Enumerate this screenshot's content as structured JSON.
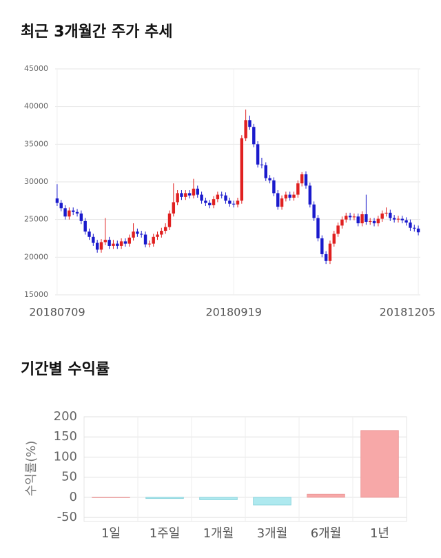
{
  "chart_data": [
    {
      "type": "candlestick",
      "title": "최근 3개월간 주가 추세",
      "categories": [
        "20180709",
        null,
        null,
        null,
        null,
        null,
        null,
        null,
        null,
        null,
        null,
        null,
        null,
        null,
        null,
        null,
        null,
        null,
        null,
        null,
        null,
        null,
        null,
        null,
        null,
        null,
        null,
        null,
        null,
        null,
        null,
        null,
        null,
        null,
        null,
        null,
        null,
        null,
        null,
        null,
        null,
        null,
        null,
        null,
        "20180919",
        null,
        null,
        null,
        null,
        null,
        null,
        null,
        null,
        null,
        null,
        null,
        null,
        null,
        null,
        null,
        null,
        null,
        null,
        null,
        null,
        null,
        null,
        null,
        null,
        null,
        null,
        null,
        null,
        null,
        null,
        null,
        null,
        null,
        null,
        null,
        null,
        null,
        null,
        null,
        null,
        null,
        null,
        null,
        null,
        null,
        "20181205"
      ],
      "open": [
        27800,
        27200,
        26500,
        25400,
        26200,
        26000,
        25800,
        24800,
        23400,
        22700,
        21900,
        21000,
        22000,
        22300,
        21500,
        21800,
        21500,
        22100,
        21800,
        22600,
        23400,
        23100,
        23000,
        21700,
        21800,
        22700,
        23000,
        23500,
        24000,
        25800,
        27300,
        28500,
        28000,
        28500,
        28200,
        29100,
        28300,
        27500,
        27200,
        26900,
        27700,
        28300,
        28200,
        27500,
        27100,
        27000,
        27500,
        35800,
        38200,
        37300,
        35000,
        32300,
        32200,
        30500,
        30200,
        28500,
        26700,
        27800,
        28300,
        27900,
        28300,
        29800,
        31000,
        29500,
        27000,
        25200,
        22500,
        20400,
        19500,
        21800,
        23100,
        24200,
        25000,
        25500,
        25300,
        25400,
        24500,
        25700,
        24700,
        24800,
        24500,
        25100,
        25800,
        25900,
        25200,
        25000,
        25100,
        24900,
        24600,
        23900,
        23800
      ],
      "high": [
        29700,
        27600,
        26900,
        26600,
        26600,
        26400,
        26200,
        25200,
        23800,
        23100,
        22300,
        22400,
        25200,
        22700,
        22300,
        22200,
        22500,
        22500,
        23000,
        24500,
        23800,
        23500,
        23400,
        22200,
        23100,
        23400,
        23900,
        24500,
        26200,
        29800,
        28900,
        28900,
        28900,
        28900,
        30400,
        29500,
        28700,
        27900,
        27600,
        28100,
        28700,
        28700,
        28600,
        27900,
        27500,
        27900,
        36200,
        39600,
        38800,
        37700,
        35400,
        33200,
        32600,
        30900,
        30600,
        28900,
        28200,
        28700,
        28700,
        28700,
        30200,
        31300,
        31400,
        29900,
        27400,
        25600,
        22900,
        20800,
        22200,
        23500,
        24600,
        25400,
        25900,
        25900,
        25800,
        25800,
        26100,
        28300,
        25200,
        25200,
        25500,
        26200,
        26600,
        26300,
        25600,
        25500,
        25500,
        25300,
        25000,
        24300,
        24200
      ],
      "low": [
        26800,
        26100,
        25000,
        25000,
        25600,
        25400,
        24400,
        23000,
        22300,
        21500,
        20600,
        20600,
        21600,
        21100,
        21100,
        21100,
        21100,
        21400,
        21400,
        22200,
        22700,
        22600,
        21300,
        21300,
        21400,
        22300,
        22600,
        23100,
        23600,
        25400,
        26900,
        27600,
        27600,
        27800,
        27800,
        27900,
        27100,
        26800,
        26500,
        26500,
        27300,
        27800,
        27100,
        26700,
        26600,
        26600,
        27100,
        35400,
        36900,
        34600,
        31900,
        31800,
        30100,
        29800,
        28100,
        26300,
        26300,
        27400,
        27500,
        27500,
        27900,
        29400,
        29100,
        26600,
        24800,
        22100,
        20000,
        19100,
        19100,
        21400,
        22700,
        23800,
        24600,
        24900,
        24900,
        24100,
        24100,
        24300,
        24300,
        24100,
        24100,
        24700,
        25400,
        24800,
        24600,
        24600,
        24500,
        24200,
        23500,
        23400,
        22900
      ],
      "close": [
        27200,
        26500,
        25400,
        26200,
        26000,
        25800,
        24800,
        23400,
        22700,
        21900,
        21000,
        22000,
        22300,
        21500,
        21800,
        21500,
        22100,
        21800,
        22600,
        23400,
        23100,
        23000,
        21700,
        21800,
        22700,
        23000,
        23500,
        24000,
        25800,
        27300,
        28500,
        28000,
        28500,
        28200,
        29100,
        28300,
        27500,
        27200,
        26900,
        27700,
        28300,
        28200,
        27500,
        27100,
        27000,
        27500,
        35800,
        38200,
        37300,
        35000,
        32300,
        32200,
        30500,
        30200,
        28500,
        26700,
        27800,
        28300,
        27900,
        28300,
        29800,
        31000,
        29500,
        27000,
        25200,
        22500,
        20400,
        19500,
        21800,
        23100,
        24200,
        25000,
        25500,
        25300,
        25400,
        24500,
        25700,
        24700,
        24800,
        24500,
        25100,
        25800,
        25900,
        25200,
        25000,
        25100,
        24900,
        24600,
        23900,
        23800,
        23300
      ],
      "up_color": "#e02020",
      "down_color": "#1a1acc",
      "ylim": [
        15000,
        45000
      ],
      "yticks": [
        15000,
        20000,
        25000,
        30000,
        35000,
        40000,
        45000
      ],
      "grid": true
    },
    {
      "type": "bar",
      "title": "기간별 수익률",
      "y_label": "수익률(%)",
      "categories": [
        "1일",
        "1주일",
        "1개월",
        "3개월",
        "6개월",
        "1년"
      ],
      "values": [
        0,
        -3,
        -6,
        -19,
        8,
        166
      ],
      "positive_color": "#f7a8a8",
      "negative_color": "#aee9ef",
      "ylim": [
        -60,
        200
      ],
      "yticks": [
        -50,
        0,
        50,
        100,
        150,
        200
      ],
      "grid": true
    }
  ]
}
